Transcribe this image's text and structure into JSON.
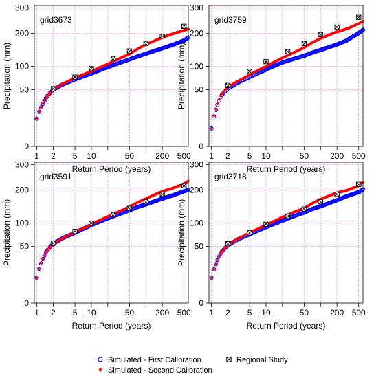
{
  "chart_data": {
    "type": "scatter",
    "xlabel": "Return Period (years)",
    "ylabel": "Precipitation (mm)",
    "x_scale": "log",
    "y_scale": "sqrt",
    "xlim": [
      0.9,
      600
    ],
    "ylim": [
      0,
      310
    ],
    "x_ticks": [
      1,
      2,
      5,
      10,
      20,
      50,
      100,
      200,
      500
    ],
    "x_tick_labels": [
      "1",
      "2",
      "5",
      "10",
      "",
      "50",
      "",
      "200",
      "500"
    ],
    "y_ticks": [
      0,
      50,
      100,
      200,
      300
    ],
    "y_tick_labels": [
      "0",
      "50",
      "100",
      "200",
      "300"
    ],
    "grid": true,
    "grid_color": "#ff66ff",
    "legend_position": "bottom",
    "legend": [
      {
        "label": "Simulated - First Calibration",
        "marker": "open-circle",
        "color": "#0000ff"
      },
      {
        "label": "Regional Study",
        "marker": "boxed-x",
        "color": "#000000"
      },
      {
        "label": "Simulated - Second Calibration",
        "marker": "filled-diamond",
        "color": "#ff0000"
      }
    ],
    "panels": [
      {
        "title": "grid3673",
        "first_calibration": {
          "x": [
            1,
            1.5,
            2,
            3,
            5,
            10,
            20,
            30,
            50,
            70,
            100,
            200,
            300,
            500,
            600
          ],
          "y": [
            12,
            38,
            50,
            60,
            70,
            83,
            98,
            107,
            118,
            126,
            134,
            150,
            160,
            175,
            185
          ]
        },
        "second_calibration": {
          "x": [
            1,
            1.5,
            2,
            3,
            5,
            10,
            20,
            30,
            50,
            70,
            100,
            200,
            300,
            500,
            600
          ],
          "y": [
            12,
            38,
            50,
            61,
            73,
            88,
            106,
            118,
            133,
            148,
            162,
            185,
            197,
            210,
            215
          ]
        },
        "regional_study": {
          "x": [
            2,
            5,
            10,
            25,
            50,
            100,
            200,
            500
          ],
          "y": [
            52,
            75,
            95,
            120,
            142,
            165,
            190,
            225
          ]
        }
      },
      {
        "title": "grid3759",
        "first_calibration": {
          "x": [
            1,
            1.5,
            2,
            3,
            5,
            10,
            20,
            30,
            50,
            70,
            100,
            200,
            300,
            500,
            600
          ],
          "y": [
            5,
            40,
            52,
            63,
            75,
            92,
            110,
            118,
            128,
            137,
            145,
            162,
            175,
            200,
            212
          ]
        },
        "second_calibration": {
          "x": [
            1,
            1.5,
            2,
            3,
            5,
            10,
            20,
            30,
            50,
            70,
            100,
            200,
            300,
            500,
            600
          ],
          "y": [
            5,
            42,
            55,
            66,
            80,
            100,
            122,
            135,
            152,
            168,
            182,
            205,
            215,
            235,
            245
          ]
        },
        "regional_study": {
          "x": [
            2,
            5,
            10,
            25,
            50,
            100,
            200,
            500
          ],
          "y": [
            58,
            88,
            112,
            140,
            165,
            195,
            222,
            260
          ]
        }
      },
      {
        "title": "grid3591",
        "first_calibration": {
          "x": [
            1,
            1.5,
            2,
            3,
            5,
            10,
            20,
            30,
            50,
            70,
            100,
            200,
            300,
            500,
            600
          ],
          "y": [
            10,
            42,
            55,
            66,
            77,
            95,
            112,
            122,
            134,
            144,
            152,
            170,
            180,
            195,
            200
          ]
        },
        "second_calibration": {
          "x": [
            1,
            1.5,
            2,
            3,
            5,
            10,
            20,
            30,
            50,
            70,
            100,
            200,
            300,
            500,
            600
          ],
          "y": [
            10,
            42,
            55,
            66,
            78,
            97,
            117,
            129,
            144,
            158,
            170,
            195,
            205,
            222,
            232
          ]
        },
        "regional_study": {
          "x": [
            2,
            5,
            10,
            25,
            50,
            100,
            200,
            500
          ],
          "y": [
            56,
            80,
            100,
            122,
            140,
            160,
            185,
            215
          ]
        }
      },
      {
        "title": "grid3718",
        "first_calibration": {
          "x": [
            1,
            1.5,
            2,
            3,
            5,
            10,
            20,
            30,
            50,
            70,
            100,
            200,
            300,
            500,
            600
          ],
          "y": [
            10,
            40,
            52,
            63,
            74,
            90,
            106,
            116,
            128,
            138,
            146,
            165,
            178,
            192,
            202
          ]
        },
        "second_calibration": {
          "x": [
            1,
            1.5,
            2,
            3,
            5,
            10,
            20,
            30,
            50,
            70,
            100,
            200,
            300,
            500,
            600
          ],
          "y": [
            10,
            40,
            53,
            64,
            77,
            95,
            115,
            127,
            140,
            155,
            168,
            190,
            198,
            215,
            228
          ]
        },
        "regional_study": {
          "x": [
            2,
            5,
            10,
            25,
            50,
            100,
            200,
            500
          ],
          "y": [
            55,
            77,
            97,
            118,
            138,
            160,
            185,
            220
          ]
        }
      }
    ]
  }
}
